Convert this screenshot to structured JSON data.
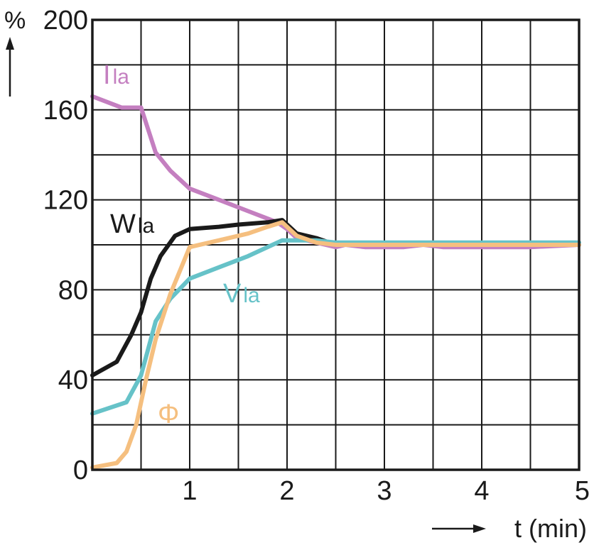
{
  "chart_data": {
    "type": "line",
    "title": "",
    "ylabel": "%",
    "xlabel": "t (min)",
    "xlim": [
      0,
      5
    ],
    "ylim": [
      0,
      200
    ],
    "x_ticks": [
      1,
      2,
      3,
      4,
      5
    ],
    "y_ticks": [
      0,
      40,
      80,
      120,
      160,
      200
    ],
    "x_tick_labels": [
      "1",
      "2",
      "3",
      "4",
      "5"
    ],
    "y_tick_labels": [
      "0",
      "40",
      "80",
      "120",
      "160",
      "200"
    ],
    "grid": true,
    "legend": "inline labels",
    "series": [
      {
        "name": "Ila",
        "label_main": "I",
        "label_sub": "la",
        "color": "#c47fc0",
        "x": [
          0,
          0.3,
          0.5,
          0.65,
          0.8,
          1.0,
          1.3,
          1.6,
          1.9,
          2.0,
          2.1,
          2.3,
          2.5,
          2.6,
          2.8,
          3.0,
          3.2,
          3.4,
          3.6,
          4.0,
          4.5,
          5.0
        ],
        "y": [
          166,
          161,
          161,
          141,
          133,
          125,
          120,
          115,
          110,
          107,
          103,
          101,
          99,
          100,
          99,
          99,
          99,
          100,
          99,
          99,
          99,
          100
        ]
      },
      {
        "name": "Wla",
        "label_main": "W",
        "label_sub": "la",
        "color": "#1a1a1a",
        "x": [
          0,
          0.25,
          0.4,
          0.5,
          0.6,
          0.7,
          0.85,
          1.0,
          1.3,
          1.5,
          1.8,
          1.95,
          2.1,
          2.3,
          2.5,
          2.6,
          3.0,
          4.0,
          5.0
        ],
        "y": [
          42,
          48,
          60,
          70,
          85,
          95,
          104,
          107,
          108,
          109,
          110,
          111,
          105,
          103,
          100,
          100,
          100,
          100,
          100
        ]
      },
      {
        "name": "Vla",
        "label_main": "V",
        "label_sub": "la",
        "color": "#66c2c8",
        "x": [
          0,
          0.35,
          0.5,
          0.65,
          0.8,
          1.0,
          1.3,
          1.6,
          1.95,
          2.1,
          2.3,
          2.5,
          2.8,
          3.0,
          3.3,
          3.6,
          4.0,
          4.5,
          5.0
        ],
        "y": [
          25,
          30,
          42,
          66,
          76,
          85,
          90,
          95,
          102,
          102,
          102,
          101,
          101,
          101,
          101,
          101,
          101,
          101,
          101
        ]
      },
      {
        "name": "Φ",
        "label_main": "Φ",
        "label_sub": "",
        "color": "#f5bf7f",
        "x": [
          0,
          0.25,
          0.35,
          0.45,
          0.55,
          0.65,
          0.8,
          1.0,
          1.3,
          1.6,
          1.8,
          1.95,
          2.1,
          2.3,
          2.5,
          2.7,
          3.0,
          3.5,
          4.0,
          4.5,
          5.0
        ],
        "y": [
          1,
          3,
          8,
          20,
          40,
          58,
          78,
          99,
          102,
          105,
          108,
          110,
          104,
          101,
          100,
          100,
          100,
          100,
          100,
          100,
          100
        ]
      }
    ]
  }
}
